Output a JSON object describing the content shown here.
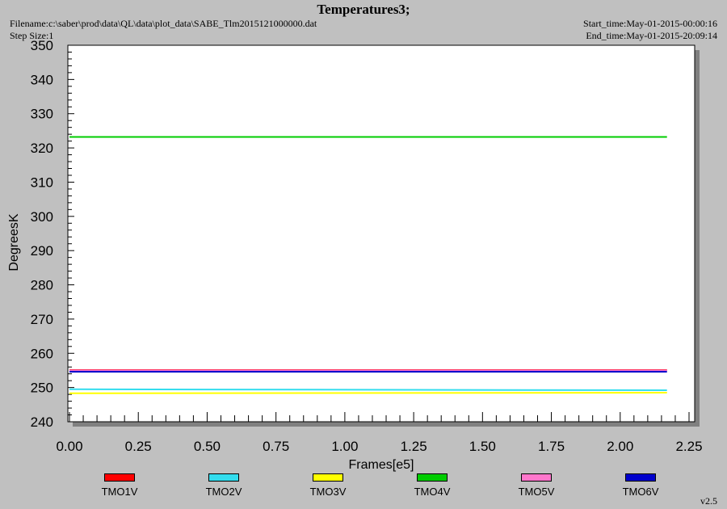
{
  "header": {
    "title": "Temperatures3;",
    "filename": "Filename:c:\\saber\\prod\\data\\QL\\data\\plot_data\\SABE_Tlm2015121000000.dat",
    "step_size": "Step Size:1",
    "start_time": "Start_time:May-01-2015-00:00:16",
    "end_time": "End_time:May-01-2015-20:09:14",
    "version": "v2.5"
  },
  "chart_data": {
    "type": "line",
    "xlabel": "Frames[e5]",
    "ylabel": "DegreesK",
    "xlim": [
      0,
      2.25
    ],
    "ylim": [
      240,
      350
    ],
    "x_ticks": [
      "0.00",
      "0.25",
      "0.50",
      "0.75",
      "1.00",
      "1.25",
      "1.50",
      "1.75",
      "2.00",
      "2.25"
    ],
    "y_ticks": [
      "240",
      "250",
      "260",
      "270",
      "280",
      "290",
      "300",
      "310",
      "320",
      "330",
      "340",
      "350"
    ],
    "x_max": 2.17,
    "series": [
      {
        "name": "TMO1V",
        "color": "#ff0000",
        "values": [
          255.1,
          255.1
        ]
      },
      {
        "name": "TMO2V",
        "color": "#33ddee",
        "values": [
          249.5,
          249.2
        ]
      },
      {
        "name": "TMO3V",
        "color": "#ffff00",
        "values": [
          248.3,
          248.5
        ]
      },
      {
        "name": "TMO4V",
        "color": "#00cc00",
        "values": [
          323.2,
          323.2
        ]
      },
      {
        "name": "TMO5V",
        "color": "#ff77cc",
        "values": [
          255.0,
          255.0
        ]
      },
      {
        "name": "TMO6V",
        "color": "#0000cc",
        "values": [
          254.6,
          254.6
        ]
      }
    ]
  }
}
